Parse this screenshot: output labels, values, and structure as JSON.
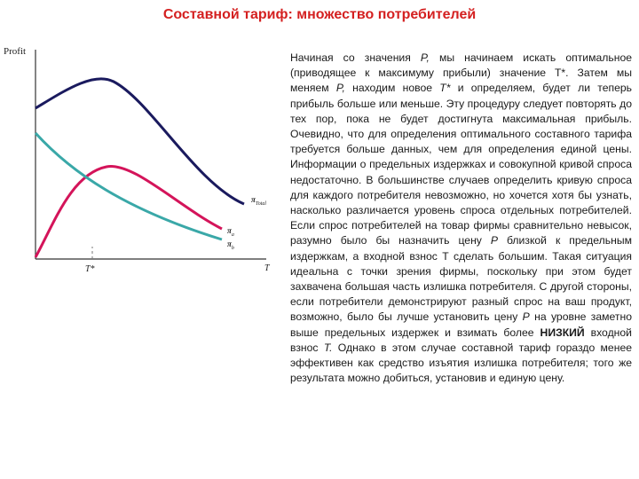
{
  "title": "Составной тариф: множество потребителей",
  "figure": {
    "y_axis_label": "Profit",
    "x_tick_label": "T*",
    "x_axis_label": "T",
    "curves": [
      {
        "symbol": "π",
        "subscript": "Total",
        "color": "#1a1a5e"
      },
      {
        "symbol": "π",
        "subscript": "a",
        "color": "#d4145a"
      },
      {
        "symbol": "π",
        "subscript": "b",
        "color": "#3aa8a8"
      }
    ]
  },
  "text": {
    "p1": "Начиная со значения ",
    "p1_var": "P,",
    "p2": " мы начинаем искать оптимальное (приводящее к максимуму прибыли) значение Т*. Затем мы меняем ",
    "p2_var": "P,",
    "p3": " находим новое ",
    "p3_var": "T*",
    "p4": " и определяем, будет ли теперь прибыль больше или меньше. Эту процедуру следует повторять до тех пор, пока не будет достигнута максимальная прибыль. Очевидно, что для определения оптимального составного тарифа требуется больше данных, чем для определения единой цены. Информации о предельных издержках и совокупной кривой спроса недостаточно. В большинстве случаев определить кривую спроса для каждого потребителя невозможно, но хочется хотя бы узнать, насколько различается уровень спроса отдельных потребителей. Если спрос потребителей на товар фирмы сравнительно невысок, разумно было бы назначить цену ",
    "p4_var": "P",
    "p5": " близкой к предельным издержкам, а входной взнос Т сделать большим. Такая ситуация идеальна с точки зрения фирмы, поскольку при этом будет захвачена большая часть излишка потребителя. С другой стороны, если потребители демонстрируют разный спрос на ваш продукт, возможно, было бы лучше установить цену ",
    "p5_var": "P",
    "p6": " на уровне заметно выше предельных издержек и взимать более ",
    "p6_bold": "НИЗКИЙ",
    "p7": " входной взнос ",
    "p7_var": "T.",
    "p8": " Однако в этом случае составной тариф гораздо менее эффективен как средство изъятия излишка потребителя; того же результата можно добиться, установив и единую цену."
  }
}
